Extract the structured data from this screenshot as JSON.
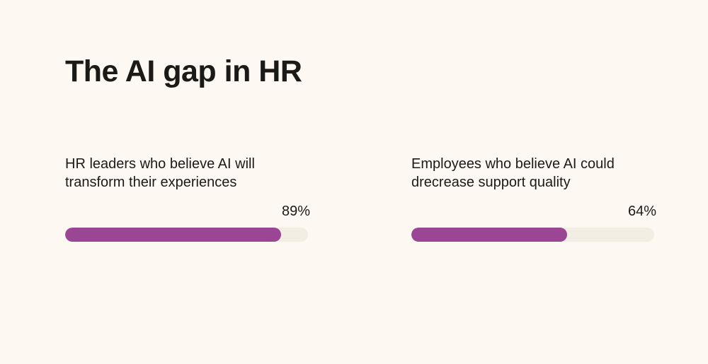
{
  "title": "The AI gap in HR",
  "colors": {
    "background": "#fdf8f1",
    "bar_fill": "#9b4695",
    "bar_track": "#f3eee4",
    "text": "#1c1a17"
  },
  "chart_data": [
    {
      "type": "bar",
      "label": "HR leaders who believe AI will transform their experiences",
      "value": 89,
      "value_label": "89%",
      "max": 100
    },
    {
      "type": "bar",
      "label": "Employees who believe AI could drecrease support quality",
      "value": 64,
      "value_label": "64%",
      "max": 100
    }
  ]
}
